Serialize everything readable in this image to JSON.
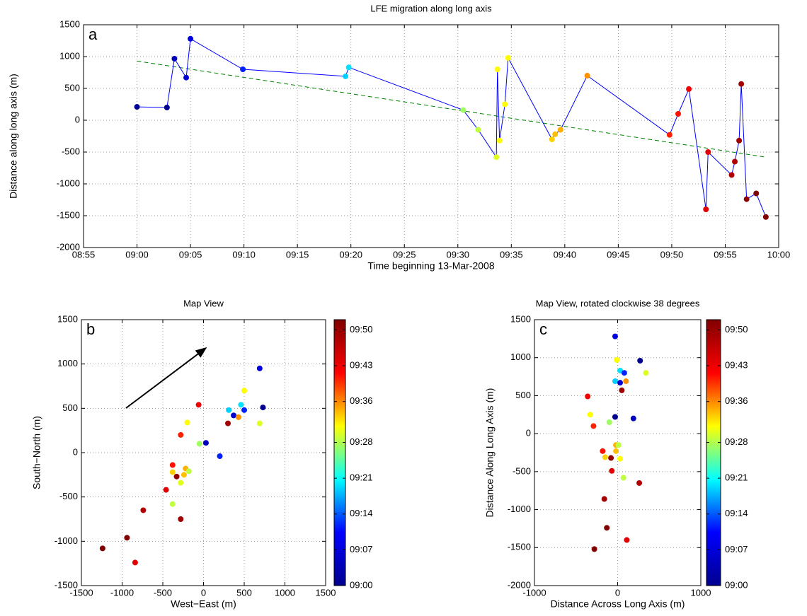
{
  "chart_data": [
    {
      "type": "line",
      "panel_label": "a",
      "title": "LFE migration along long axis",
      "xlabel": "Time beginning 13-Mar-2008",
      "ylabel": "Distance along long axis (m)",
      "x": [
        540.0,
        542.8,
        543.5,
        544.6,
        545.0,
        549.9,
        559.5,
        559.8,
        570.5,
        571.9,
        573.6,
        573.7,
        573.9,
        574.4,
        574.7,
        578.8,
        579.1,
        579.6,
        582.1,
        589.8,
        590.6,
        591.6,
        593.2,
        593.4,
        595.6,
        595.9,
        596.3,
        596.5,
        597.0,
        597.9,
        598.8
      ],
      "values": [
        210,
        200,
        967,
        670,
        1280,
        800,
        690,
        830,
        160,
        -150,
        -580,
        800,
        -320,
        250,
        980,
        -300,
        -220,
        -150,
        700,
        -230,
        100,
        490,
        -1400,
        -500,
        -860,
        -650,
        -320,
        570,
        -1240,
        -1150,
        -1520
      ],
      "color": "#0000ff",
      "marker_colors": [
        "#00008f",
        "#00008f",
        "#0000c0",
        "#0000d0",
        "#0000e0",
        "#0020ff",
        "#00d0ff",
        "#00e0ff",
        "#a0ff60",
        "#c0ff40",
        "#e0ff20",
        "#ffff00",
        "#ffff00",
        "#ffff00",
        "#ffff00",
        "#ffd000",
        "#ffc000",
        "#ffb000",
        "#ff9000",
        "#ff2000",
        "#ff1000",
        "#f00000",
        "#e00000",
        "#e00000",
        "#b00000",
        "#b00000",
        "#a00000",
        "#a00000",
        "#900000",
        "#800000",
        "#800000"
      ],
      "trend": {
        "x": [
          540.0,
          598.8
        ],
        "values": [
          930,
          -580
        ],
        "color": "#008000"
      },
      "xlim": [
        535,
        600
      ],
      "xticks": [
        {
          "value": 535,
          "label": "08:55"
        },
        {
          "value": 540,
          "label": "09:00"
        },
        {
          "value": 545,
          "label": "09:05"
        },
        {
          "value": 550,
          "label": "09:10"
        },
        {
          "value": 555,
          "label": "09:15"
        },
        {
          "value": 560,
          "label": "09:20"
        },
        {
          "value": 565,
          "label": "09:25"
        },
        {
          "value": 570,
          "label": "09:30"
        },
        {
          "value": 575,
          "label": "09:35"
        },
        {
          "value": 580,
          "label": "09:40"
        },
        {
          "value": 585,
          "label": "09:45"
        },
        {
          "value": 590,
          "label": "09:50"
        },
        {
          "value": 595,
          "label": "09:55"
        },
        {
          "value": 600,
          "label": "10:00"
        }
      ],
      "ylim": [
        -2000,
        1500
      ],
      "yticks": [
        -2000,
        -1500,
        -1000,
        -500,
        0,
        500,
        1000,
        1500
      ],
      "grid": true
    },
    {
      "type": "scatter",
      "panel_label": "b",
      "title": "Map View",
      "xlabel": "West−East (m)",
      "ylabel": "South−North (m)",
      "x": [
        690,
        730,
        500,
        460,
        500,
        310,
        370,
        430,
        300,
        690,
        -60,
        -200,
        -280,
        -50,
        30,
        200,
        -380,
        -220,
        -180,
        -380,
        -330,
        -240,
        -280,
        -460,
        -380,
        -740,
        -280,
        -940,
        -1240,
        -840
      ],
      "values": [
        950,
        510,
        700,
        540,
        480,
        480,
        420,
        400,
        330,
        330,
        540,
        340,
        200,
        100,
        110,
        -40,
        -140,
        -180,
        -210,
        -220,
        -270,
        -250,
        -340,
        -420,
        -580,
        -650,
        -750,
        -960,
        -1080,
        -1240
      ],
      "colors": [
        "#0000e0",
        "#00008f",
        "#ffff00",
        "#00e0ff",
        "#0020ff",
        "#00d0ff",
        "#0000d0",
        "#ff9000",
        "#a00000",
        "#e0ff20",
        "#f00000",
        "#ffff00",
        "#ff2000",
        "#a0ff60",
        "#0000c0",
        "#0020ff",
        "#ff1000",
        "#ffb000",
        "#c0ff40",
        "#ffd000",
        "#900000",
        "#ffc000",
        "#e0ff20",
        "#e00000",
        "#c0ff40",
        "#b00000",
        "#a00000",
        "#800000",
        "#800000",
        "#e00000"
      ],
      "xlim": [
        -1500,
        1500
      ],
      "xticks": [
        -1500,
        -1000,
        -500,
        0,
        500,
        1000,
        1500
      ],
      "ylim": [
        -1500,
        1500
      ],
      "yticks": [
        -1500,
        -1000,
        -500,
        0,
        500,
        1000,
        1500
      ],
      "grid": true,
      "colorbar": {
        "clim": [
          540,
          592
        ],
        "colormap": [
          "#00008f",
          "#0000ff",
          "#00ffff",
          "#ffff00",
          "#ff0000",
          "#800000"
        ],
        "ticks": [
          {
            "value": 540,
            "label": "09:00"
          },
          {
            "value": 547,
            "label": "09:07"
          },
          {
            "value": 554,
            "label": "09:14"
          },
          {
            "value": 561,
            "label": "09:21"
          },
          {
            "value": 568,
            "label": "09:28"
          },
          {
            "value": 576,
            "label": "09:36"
          },
          {
            "value": 583,
            "label": "09:43"
          },
          {
            "value": 590,
            "label": "09:50"
          }
        ]
      }
    },
    {
      "type": "scatter",
      "panel_label": "c",
      "title": "Map View, rotated clockwise 38 degrees",
      "xlabel": "Distance Across Long Axis (m)",
      "ylabel": "Distance Along Long Axis (m)",
      "x": [
        -30,
        270,
        -10,
        30,
        80,
        340,
        -30,
        30,
        100,
        50,
        -360,
        -330,
        -30,
        190,
        -290,
        -100,
        -20,
        10,
        -180,
        -20,
        -150,
        -80,
        30,
        -70,
        70,
        260,
        -160,
        -130,
        110,
        -280
      ],
      "values": [
        1280,
        960,
        970,
        830,
        800,
        800,
        690,
        670,
        690,
        570,
        490,
        250,
        220,
        200,
        100,
        150,
        -150,
        -150,
        -230,
        -230,
        -310,
        -320,
        -330,
        -490,
        -580,
        -650,
        -860,
        -1240,
        -1400,
        -1520
      ],
      "colors": [
        "#0000e0",
        "#00008f",
        "#ffff00",
        "#00e0ff",
        "#0020ff",
        "#e0ff20",
        "#00d0ff",
        "#0000d0",
        "#ff9000",
        "#a00000",
        "#f00000",
        "#ffff00",
        "#00008f",
        "#0000c0",
        "#ff2000",
        "#a0ff60",
        "#ffb000",
        "#c0ff40",
        "#ff1000",
        "#ffc000",
        "#ffd000",
        "#900000",
        "#ffff00",
        "#e00000",
        "#c0ff40",
        "#b00000",
        "#a00000",
        "#800000",
        "#e00000",
        "#800000"
      ],
      "xlim": [
        -1000,
        1000
      ],
      "xticks": [
        -1000,
        0,
        1000
      ],
      "ylim": [
        -2000,
        1500
      ],
      "yticks": [
        -2000,
        -1500,
        -1000,
        -500,
        0,
        500,
        1000,
        1500
      ],
      "grid": true,
      "colorbar": {
        "clim": [
          540,
          592
        ],
        "colormap": [
          "#00008f",
          "#0000ff",
          "#00ffff",
          "#ffff00",
          "#ff0000",
          "#800000"
        ],
        "ticks": [
          {
            "value": 540,
            "label": "09:00"
          },
          {
            "value": 547,
            "label": "09:07"
          },
          {
            "value": 554,
            "label": "09:14"
          },
          {
            "value": 561,
            "label": "09:21"
          },
          {
            "value": 568,
            "label": "09:28"
          },
          {
            "value": 576,
            "label": "09:36"
          },
          {
            "value": 583,
            "label": "09:43"
          },
          {
            "value": 590,
            "label": "09:50"
          }
        ]
      }
    }
  ]
}
